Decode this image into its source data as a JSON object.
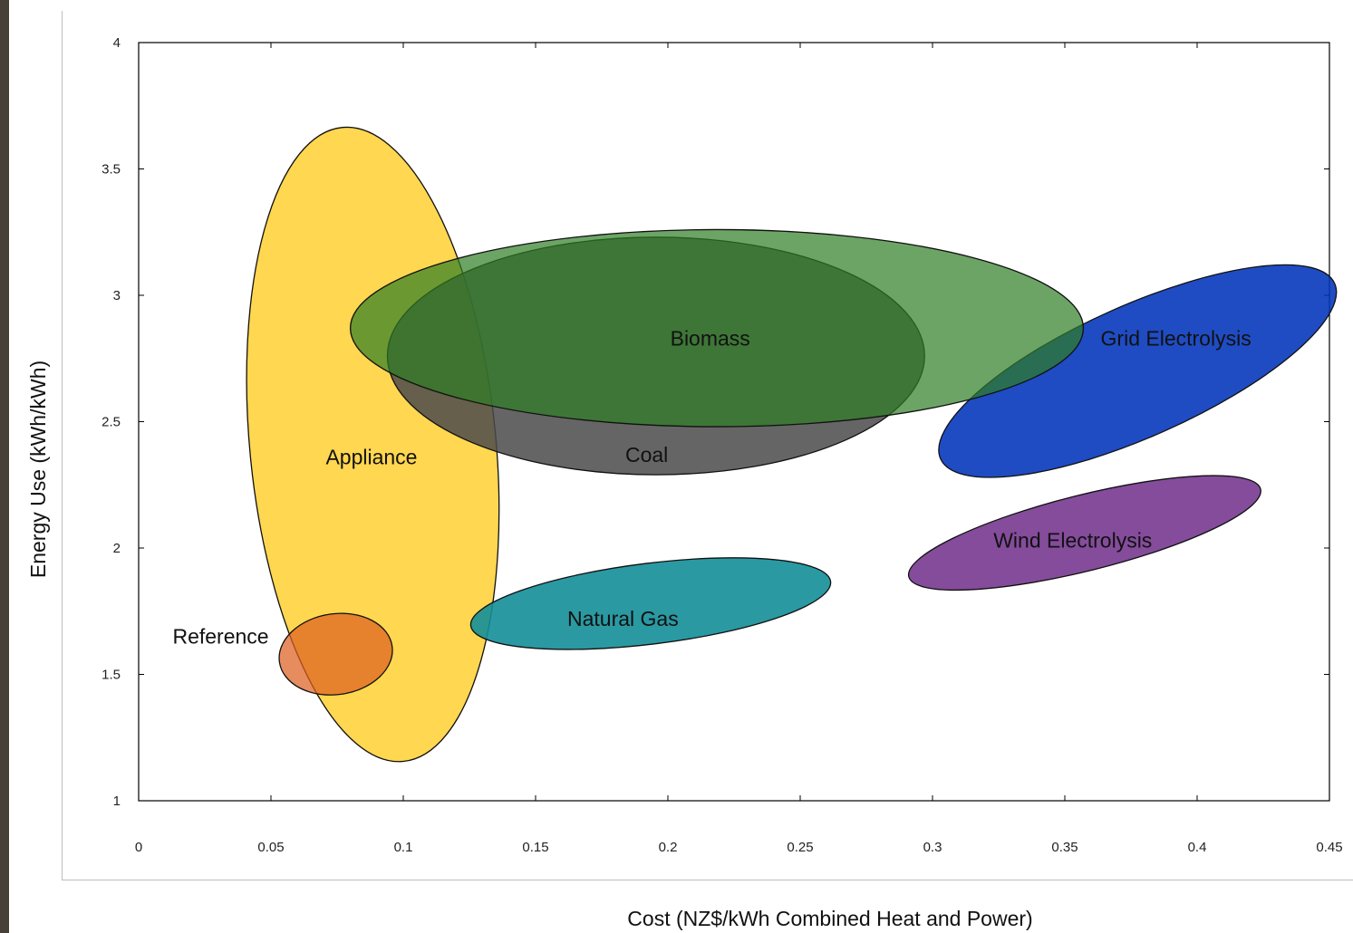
{
  "chart_data": {
    "type": "scatter",
    "title": "",
    "xlabel": "Cost (NZ$/kWh Combined Heat and Power)",
    "ylabel": "Energy Use (kWh/kWh)",
    "xlim": [
      0,
      0.45
    ],
    "ylim": [
      1,
      4
    ],
    "xticks": [
      "0",
      "0.05",
      "0.1",
      "0.15",
      "0.2",
      "0.25",
      "0.3",
      "0.35",
      "0.4",
      "0.45"
    ],
    "yticks": [
      "1",
      "1.5",
      "2",
      "2.5",
      "3",
      "3.5",
      "4"
    ],
    "grid": false,
    "regions": [
      {
        "name": "Appliance",
        "cx": 0.0885,
        "cy": 2.41,
        "rx": 0.0465,
        "ry": 1.26,
        "angle": -5.5,
        "color": "#ffd33d",
        "opacity": 0.9,
        "label_at": [
          0.088,
          2.36
        ]
      },
      {
        "name": "Coal",
        "cx": 0.1955,
        "cy": 2.76,
        "rx": 0.1015,
        "ry": 0.47,
        "angle": 0,
        "color": "#4a4a4a",
        "opacity": 0.85,
        "label_at": [
          0.192,
          2.37
        ]
      },
      {
        "name": "Grid Electrolysis",
        "cx": 0.3775,
        "cy": 2.7,
        "rx": 0.0815,
        "ry": 0.26,
        "angle": -24,
        "color": "#0033bb",
        "opacity": 0.88,
        "label_at": [
          0.392,
          2.83
        ]
      },
      {
        "name": "Biomass",
        "cx": 0.2185,
        "cy": 2.87,
        "rx": 0.1385,
        "ry": 0.39,
        "angle": 0,
        "color": "#2e7d24",
        "opacity": 0.7,
        "label_at": [
          0.216,
          2.83
        ]
      },
      {
        "name": "Natural Gas",
        "cx": 0.1935,
        "cy": 1.78,
        "rx": 0.0685,
        "ry": 0.16,
        "angle": -7,
        "color": "#138e98",
        "opacity": 0.9,
        "label_at": [
          0.183,
          1.72
        ]
      },
      {
        "name": "Wind Electrolysis",
        "cx": 0.3575,
        "cy": 2.06,
        "rx": 0.0685,
        "ry": 0.15,
        "angle": -14,
        "color": "#6e2d8a",
        "opacity": 0.85,
        "label_at": [
          0.353,
          2.03
        ]
      },
      {
        "name": "Reference",
        "cx": 0.0745,
        "cy": 1.58,
        "rx": 0.0215,
        "ry": 0.16,
        "angle": -8,
        "color": "#dd6020",
        "opacity": 0.72,
        "label_at": [
          0.031,
          1.65
        ]
      }
    ]
  }
}
